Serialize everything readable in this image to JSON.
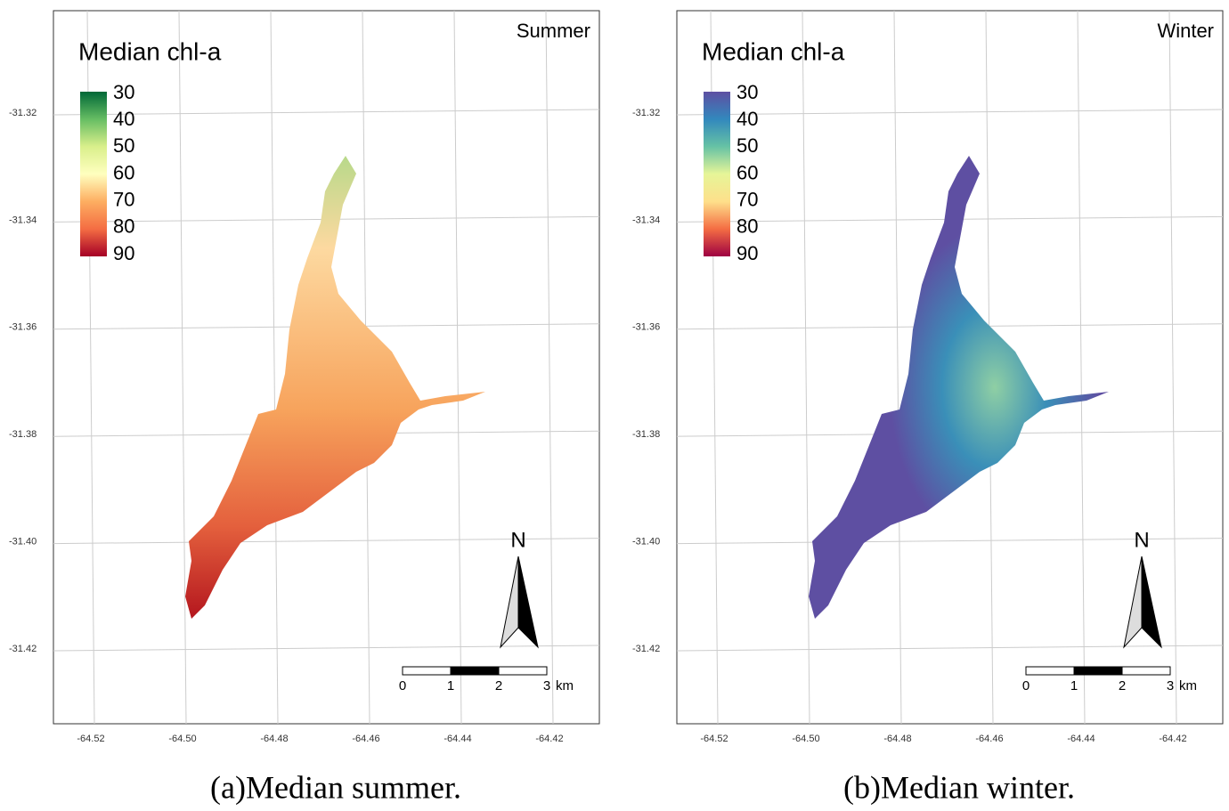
{
  "panels": [
    {
      "season": "Summer",
      "legend": {
        "title": "Median chl-a",
        "ticks": [
          30,
          40,
          50,
          60,
          70,
          80,
          90
        ],
        "colors": [
          "#006837",
          "#66bd63",
          "#d9ef8b",
          "#ffffbf",
          "#fdae61",
          "#f46d43",
          "#a50026"
        ]
      },
      "lat_ticks": [
        {
          "value": -31.32,
          "label": "-31.32"
        },
        {
          "value": -31.34,
          "label": "-31.34"
        },
        {
          "value": -31.36,
          "label": "-31.36"
        },
        {
          "value": -31.38,
          "label": "-31.38"
        },
        {
          "value": -31.4,
          "label": "-31.40"
        },
        {
          "value": -31.42,
          "label": "-31.42"
        }
      ],
      "lon_ticks": [
        {
          "value": -64.52,
          "label": "-64.52"
        },
        {
          "value": -64.5,
          "label": "-64.50"
        },
        {
          "value": -64.48,
          "label": "-64.48"
        },
        {
          "value": -64.46,
          "label": "-64.46"
        },
        {
          "value": -64.44,
          "label": "-64.44"
        },
        {
          "value": -64.42,
          "label": "-64.42"
        }
      ],
      "scale": {
        "ticks": [
          0,
          1,
          2,
          3
        ],
        "unit": "km"
      },
      "north": "N",
      "caption": "(a)Median summer."
    },
    {
      "season": "Winter",
      "legend": {
        "title": "Median chl-a",
        "ticks": [
          30,
          40,
          50,
          60,
          70,
          80,
          90
        ],
        "colors": [
          "#5e4fa2",
          "#3288bd",
          "#66c2a5",
          "#e6f598",
          "#fee08b",
          "#f46d43",
          "#9e0142"
        ]
      },
      "lat_ticks": [
        {
          "value": -31.32,
          "label": "-31.32"
        },
        {
          "value": -31.34,
          "label": "-31.34"
        },
        {
          "value": -31.36,
          "label": "-31.36"
        },
        {
          "value": -31.38,
          "label": "-31.38"
        },
        {
          "value": -31.4,
          "label": "-31.40"
        },
        {
          "value": -31.42,
          "label": "-31.42"
        }
      ],
      "lon_ticks": [
        {
          "value": -64.52,
          "label": "-64.52"
        },
        {
          "value": -64.5,
          "label": "-64.50"
        },
        {
          "value": -64.48,
          "label": "-64.48"
        },
        {
          "value": -64.46,
          "label": "-64.46"
        },
        {
          "value": -64.44,
          "label": "-64.44"
        },
        {
          "value": -64.42,
          "label": "-64.42"
        }
      ],
      "scale": {
        "ticks": [
          0,
          1,
          2,
          3
        ],
        "unit": "km"
      },
      "north": "N",
      "caption": "(b)Median winter."
    }
  ]
}
